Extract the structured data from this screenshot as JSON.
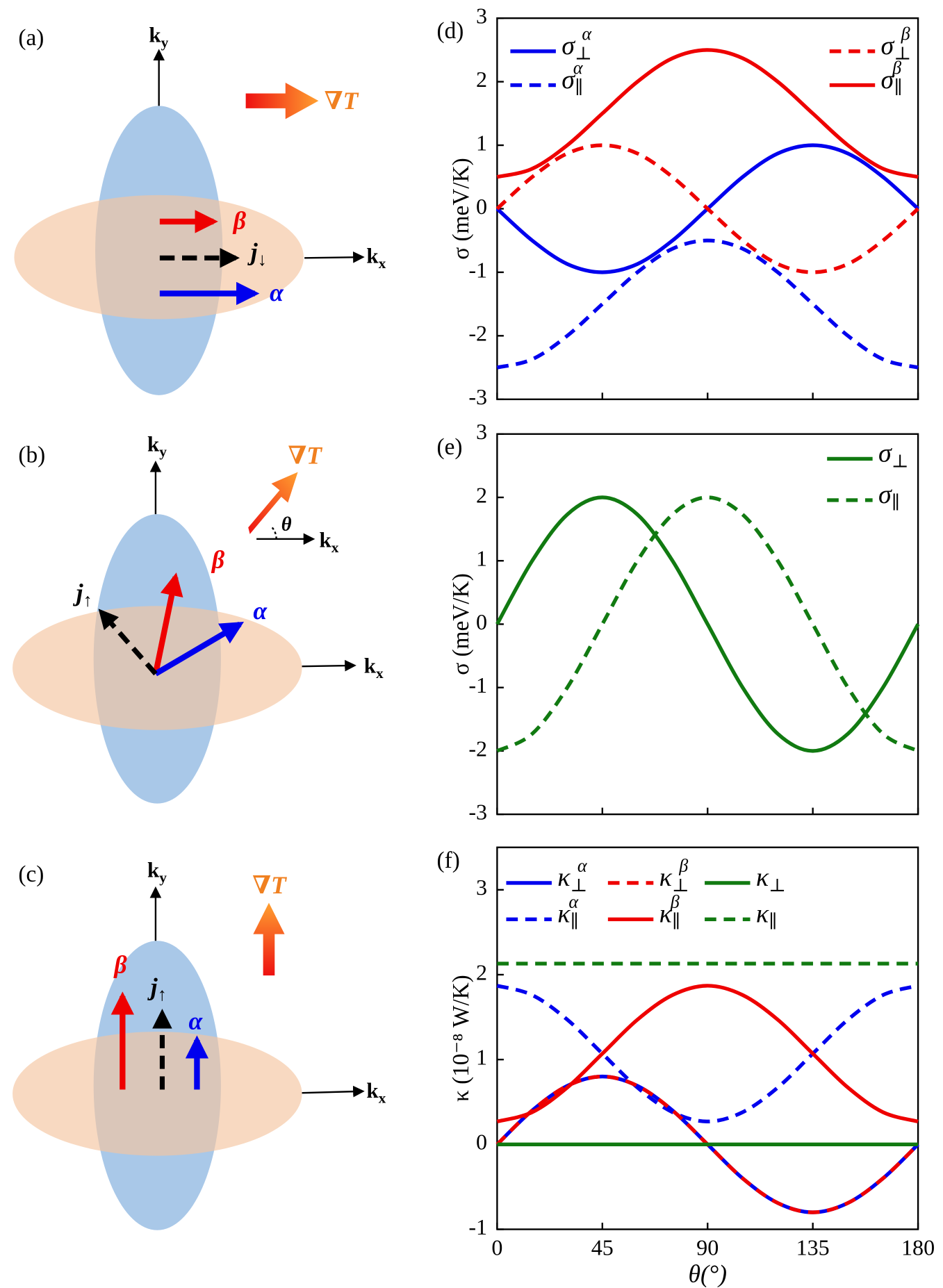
{
  "diagrams": [
    {
      "label": "(a)",
      "ky": "ky",
      "kx": "kx",
      "grad": "∇T",
      "beta": "β",
      "alpha": "α",
      "j": "j↓"
    },
    {
      "label": "(b)",
      "ky": "ky",
      "kx": "kx",
      "grad": "∇T",
      "beta": "β",
      "alpha": "α",
      "j": "j↑",
      "theta": "θ",
      "kx2": "kx"
    },
    {
      "label": "(c)",
      "ky": "ky",
      "kx": "kx",
      "grad": "∇T",
      "beta": "β",
      "alpha": "α",
      "j": "j↑"
    }
  ],
  "chart_data": [
    {
      "type": "line",
      "label": "(d)",
      "ylabel": "σ (meV/K)",
      "x": [
        0,
        15,
        30,
        45,
        60,
        75,
        90,
        105,
        120,
        135,
        150,
        165,
        180
      ],
      "xlim": [
        0,
        180
      ],
      "xticks": [
        0,
        45,
        90,
        135,
        180
      ],
      "show_xtick_labels": false,
      "ylim": [
        -3,
        3
      ],
      "yticks": [
        -3,
        -2,
        -1,
        0,
        1,
        2,
        3
      ],
      "series": [
        {
          "name": "σ⊥α",
          "color": "#0000ee",
          "linestyle": "solid",
          "values": [
            0,
            -0.5,
            -0.87,
            -1,
            -0.87,
            -0.5,
            0,
            0.5,
            0.87,
            1,
            0.87,
            0.5,
            0
          ]
        },
        {
          "name": "σ∥α",
          "color": "#0000ee",
          "linestyle": "dashed",
          "values": [
            -2.5,
            -2.37,
            -2,
            -1.5,
            -1,
            -0.63,
            -0.5,
            -0.63,
            -1,
            -1.5,
            -2,
            -2.37,
            -2.5
          ]
        },
        {
          "name": "σ⊥β",
          "color": "#ee0000",
          "linestyle": "dashed",
          "values": [
            0,
            0.5,
            0.87,
            1,
            0.87,
            0.5,
            0,
            -0.5,
            -0.87,
            -1,
            -0.87,
            -0.5,
            0
          ]
        },
        {
          "name": "σ∥β",
          "color": "#ee0000",
          "linestyle": "solid",
          "values": [
            0.5,
            0.63,
            1,
            1.5,
            2,
            2.37,
            2.5,
            2.37,
            2,
            1.5,
            1,
            0.63,
            0.5
          ]
        }
      ]
    },
    {
      "type": "line",
      "label": "(e)",
      "ylabel": "σ (meV/K)",
      "x": [
        0,
        15,
        30,
        45,
        60,
        75,
        90,
        105,
        120,
        135,
        150,
        165,
        180
      ],
      "xlim": [
        0,
        180
      ],
      "xticks": [
        0,
        45,
        90,
        135,
        180
      ],
      "show_xtick_labels": false,
      "ylim": [
        -3,
        3
      ],
      "yticks": [
        -3,
        -2,
        -1,
        0,
        1,
        2,
        3
      ],
      "series": [
        {
          "name": "σ⊥",
          "color": "#117a11",
          "linestyle": "solid",
          "values": [
            0,
            1,
            1.73,
            2,
            1.73,
            1,
            0,
            -1,
            -1.73,
            -2,
            -1.73,
            -1,
            0
          ]
        },
        {
          "name": "σ∥",
          "color": "#117a11",
          "linestyle": "dashed",
          "values": [
            -2,
            -1.73,
            -1,
            0,
            1,
            1.73,
            2,
            1.73,
            1,
            0,
            -1,
            -1.73,
            -2
          ]
        }
      ]
    },
    {
      "type": "line",
      "label": "(f)",
      "ylabel": "κ (10⁻⁸ W/K)",
      "xlabel": "θ(°)",
      "x": [
        0,
        15,
        30,
        45,
        60,
        75,
        90,
        105,
        120,
        135,
        150,
        165,
        180
      ],
      "xlim": [
        0,
        180
      ],
      "xticks": [
        0,
        45,
        90,
        135,
        180
      ],
      "show_xtick_labels": true,
      "ylim": [
        -1,
        3.5
      ],
      "yticks": [
        -1,
        0,
        1,
        2,
        3
      ],
      "series": [
        {
          "name": "κ⊥α",
          "color": "#0000ee",
          "linestyle": "solid",
          "values": [
            0,
            0.4,
            0.69,
            0.8,
            0.69,
            0.4,
            0,
            -0.4,
            -0.69,
            -0.8,
            -0.69,
            -0.4,
            0
          ]
        },
        {
          "name": "κ∥α",
          "color": "#0000ee",
          "linestyle": "dashed",
          "values": [
            1.87,
            1.76,
            1.47,
            1.07,
            0.67,
            0.38,
            0.27,
            0.38,
            0.67,
            1.07,
            1.47,
            1.76,
            1.87
          ]
        },
        {
          "name": "κ⊥β",
          "color": "#ee0000",
          "linestyle": "dashed",
          "values": [
            0,
            0.4,
            0.69,
            0.8,
            0.69,
            0.4,
            0,
            -0.4,
            -0.69,
            -0.8,
            -0.69,
            -0.4,
            0
          ]
        },
        {
          "name": "κ∥β",
          "color": "#ee0000",
          "linestyle": "solid",
          "values": [
            0.27,
            0.38,
            0.67,
            1.07,
            1.47,
            1.76,
            1.87,
            1.76,
            1.47,
            1.07,
            0.67,
            0.38,
            0.27
          ]
        },
        {
          "name": "κ⊥",
          "color": "#117a11",
          "linestyle": "solid",
          "values": [
            0,
            0,
            0,
            0,
            0,
            0,
            0,
            0,
            0,
            0,
            0,
            0,
            0
          ]
        },
        {
          "name": "κ∥",
          "color": "#117a11",
          "linestyle": "dashed",
          "values": [
            2.13,
            2.13,
            2.13,
            2.13,
            2.13,
            2.13,
            2.13,
            2.13,
            2.13,
            2.13,
            2.13,
            2.13,
            2.13
          ]
        }
      ]
    }
  ]
}
